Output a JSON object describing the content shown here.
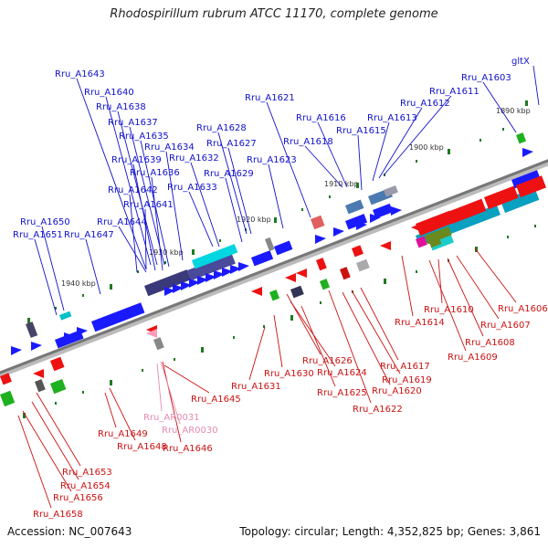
{
  "title": "Rhodospirillum rubrum ATCC 11170, complete genome",
  "accession": "Accession: NC_007643",
  "topology": "Topology: circular; Length: 4,352,825 bp; Genes: 3,861",
  "colors": {
    "top_label": "#1010cc",
    "bottom_label": "#cc1010",
    "rna_label": "#e48aae",
    "backbone": "#888888",
    "tick_green": "#1f7a1f"
  },
  "scale_ticks": [
    "1890 kbp",
    "1900 kbp",
    "1910 kbp",
    "1920 kbp",
    "1930 kbp",
    "1940 kbp"
  ],
  "top_labels": [
    "Rru_A1643",
    "Rru_A1640",
    "Rru_A1638",
    "Rru_A1637",
    "Rru_A1635",
    "Rru_A1634",
    "Rru_A1639",
    "Rru_A1636",
    "Rru_A1642",
    "Rru_A1641",
    "Rru_A1644",
    "Rru_A1650",
    "Rru_A1651",
    "Rru_A1647",
    "Rru_A1628",
    "Rru_A1627",
    "Rru_A1632",
    "Rru_A1633",
    "Rru_A1629",
    "Rru_A1621",
    "Rru_A1623",
    "Rru_A1616",
    "Rru_A1618",
    "Rru_A1615",
    "Rru_A1613",
    "Rru_A1612",
    "Rru_A1611",
    "Rru_A1603",
    "gltX"
  ],
  "bottom_labels": [
    "Rru_A1606",
    "Rru_A1607",
    "Rru_A1608",
    "Rru_A1609",
    "Rru_A1610",
    "Rru_A1614",
    "Rru_A1617",
    "Rru_A1619",
    "Rru_A1620",
    "Rru_A1622",
    "Rru_A1625",
    "Rru_A1624",
    "Rru_A1626",
    "Rru_A1630",
    "Rru_A1631",
    "Rru_A1645",
    "Rru_A1646",
    "Rru_A1648",
    "Rru_A1649",
    "Rru_A1653",
    "Rru_A1654",
    "Rru_A1656",
    "Rru_A1658"
  ],
  "rna_labels": [
    "Rru_AR0031",
    "Rru_AR0030"
  ]
}
